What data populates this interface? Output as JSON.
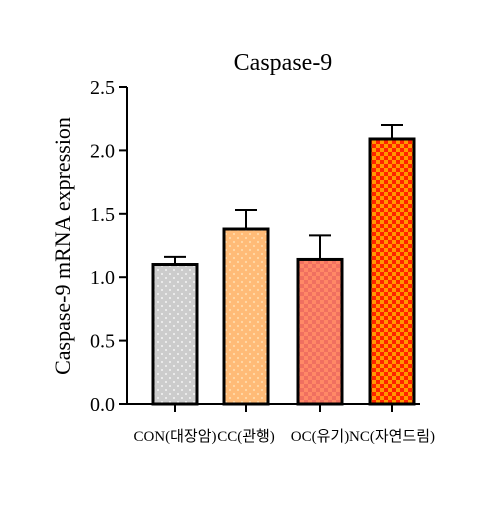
{
  "chart_data": {
    "type": "bar",
    "title": "Caspase-9",
    "xlabel": "",
    "ylabel": "Caspase-9 mRNA expression",
    "ylim": [
      0,
      2.5
    ],
    "yticks": [
      "0.0",
      "0.5",
      "1.0",
      "1.5",
      "2.0",
      "2.5"
    ],
    "categories": [
      "CON(대장암)",
      "CC(관행)",
      "OC(유기)",
      "NC(자연드림)"
    ],
    "values": [
      1.1,
      1.38,
      1.14,
      2.09
    ],
    "errors": [
      0.06,
      0.15,
      0.19,
      0.11
    ],
    "grid": false,
    "legend": "none",
    "colors": [
      "#cccccc",
      "#ffbb77",
      "#ff8866",
      "#ff2200"
    ],
    "pattern_colors": [
      "#ffffff",
      "#ffd9a8",
      "#f07060",
      "#ff9900"
    ]
  }
}
